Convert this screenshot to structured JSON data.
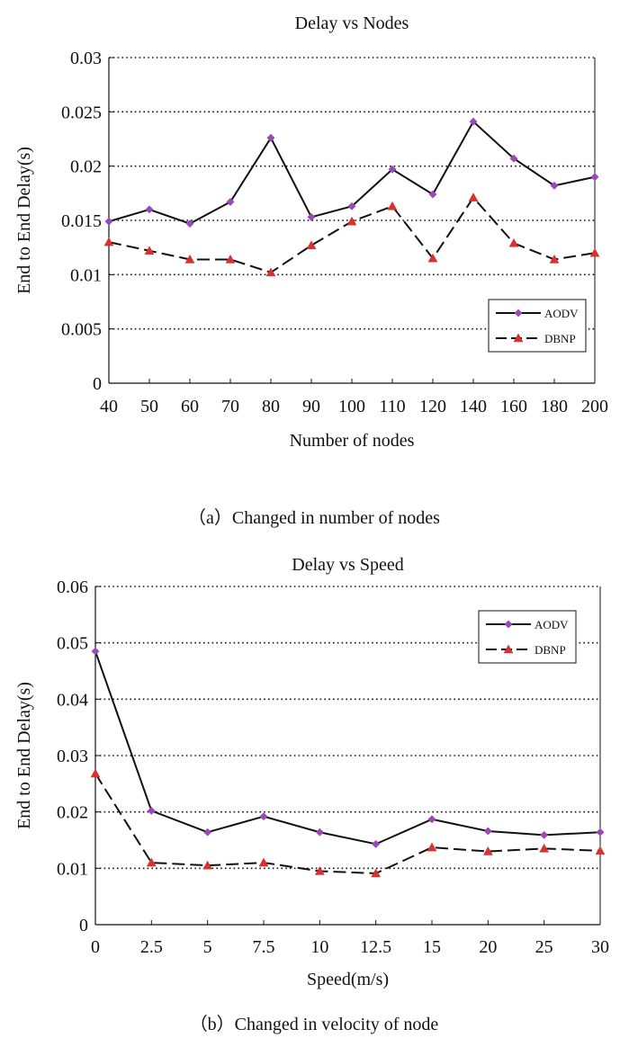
{
  "colors": {
    "aodv_marker": "#9b48b8",
    "dbnp_marker": "#d93030",
    "line": "#111111",
    "grid": "#111111"
  },
  "chart_data": [
    {
      "type": "line",
      "title": "Delay vs Nodes",
      "xlabel": "Number  of  nodes",
      "ylabel": "End to End Delay(s)",
      "caption": "（a）Changed in number of nodes",
      "categories": [
        "40",
        "50",
        "60",
        "70",
        "80",
        "90",
        "100",
        "110",
        "120",
        "140",
        "160",
        "180",
        "200"
      ],
      "ylim": [
        0,
        0.03
      ],
      "yticks": [
        "0",
        "0.005",
        "0.01",
        "0.015",
        "0.02",
        "0.025",
        "0.03"
      ],
      "grid": "horizontal-dotted",
      "legend_position": "bottom-right",
      "series": [
        {
          "name": "AODV",
          "marker": "diamond",
          "dash": "solid",
          "values": [
            0.0149,
            0.016,
            0.0147,
            0.0167,
            0.0226,
            0.0153,
            0.0163,
            0.0197,
            0.0174,
            0.0241,
            0.0207,
            0.0182,
            0.019
          ]
        },
        {
          "name": "DBNP",
          "marker": "triangle",
          "dash": "dashed",
          "values": [
            0.013,
            0.0122,
            0.0114,
            0.0114,
            0.0102,
            0.0127,
            0.0149,
            0.0163,
            0.0115,
            0.0171,
            0.0129,
            0.0114,
            0.012
          ]
        }
      ]
    },
    {
      "type": "line",
      "title": "Delay vs Speed",
      "xlabel": "Speed(m/s)",
      "ylabel": "End to End Delay(s)",
      "caption": "（b）Changed in velocity of node",
      "categories": [
        "0",
        "2.5",
        "5",
        "7.5",
        "10",
        "12.5",
        "15",
        "20",
        "25",
        "30"
      ],
      "ylim": [
        0,
        0.06
      ],
      "yticks": [
        "0",
        "0.01",
        "0.02",
        "0.03",
        "0.04",
        "0.05",
        "0.06"
      ],
      "grid": "horizontal-dotted",
      "legend_position": "top-right",
      "series": [
        {
          "name": "AODV",
          "marker": "diamond",
          "dash": "solid",
          "values": [
            0.0485,
            0.0202,
            0.0164,
            0.0192,
            0.0164,
            0.0143,
            0.0187,
            0.0166,
            0.0159,
            0.0164
          ]
        },
        {
          "name": "DBNP",
          "marker": "triangle",
          "dash": "dashed",
          "values": [
            0.0268,
            0.011,
            0.0105,
            0.011,
            0.0095,
            0.0091,
            0.0137,
            0.013,
            0.0135,
            0.0131
          ]
        }
      ]
    }
  ]
}
